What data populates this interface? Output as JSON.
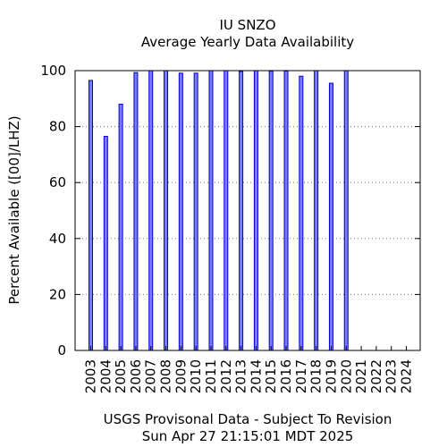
{
  "chart_data": {
    "type": "bar",
    "title": "IU SNZO",
    "subtitle": "Average Yearly Data Availability",
    "xlabel": "",
    "ylabel": "Percent Available ([00]/LHZ)",
    "ylim": [
      0,
      100
    ],
    "yticks": [
      0,
      20,
      40,
      60,
      80,
      100
    ],
    "grid": true,
    "categories": [
      "2003",
      "2004",
      "2005",
      "2006",
      "2007",
      "2008",
      "2009",
      "2010",
      "2011",
      "2012",
      "2013",
      "2014",
      "2015",
      "2016",
      "2017",
      "2018",
      "2019",
      "2020",
      "2021",
      "2022",
      "2023",
      "2024"
    ],
    "values": [
      96.5,
      76.5,
      88,
      99.3,
      100,
      100,
      99.1,
      99.1,
      100,
      100,
      99.7,
      100,
      99.8,
      99.8,
      98,
      100,
      95.5,
      100,
      0,
      0,
      0,
      0
    ],
    "bar_color": "#7b7bff",
    "bar_stroke": "#0000cc",
    "footer_line1": "USGS Provisonal Data - Subject To Revision",
    "footer_line2": "Sun Apr 27 21:15:01 MDT 2025"
  }
}
